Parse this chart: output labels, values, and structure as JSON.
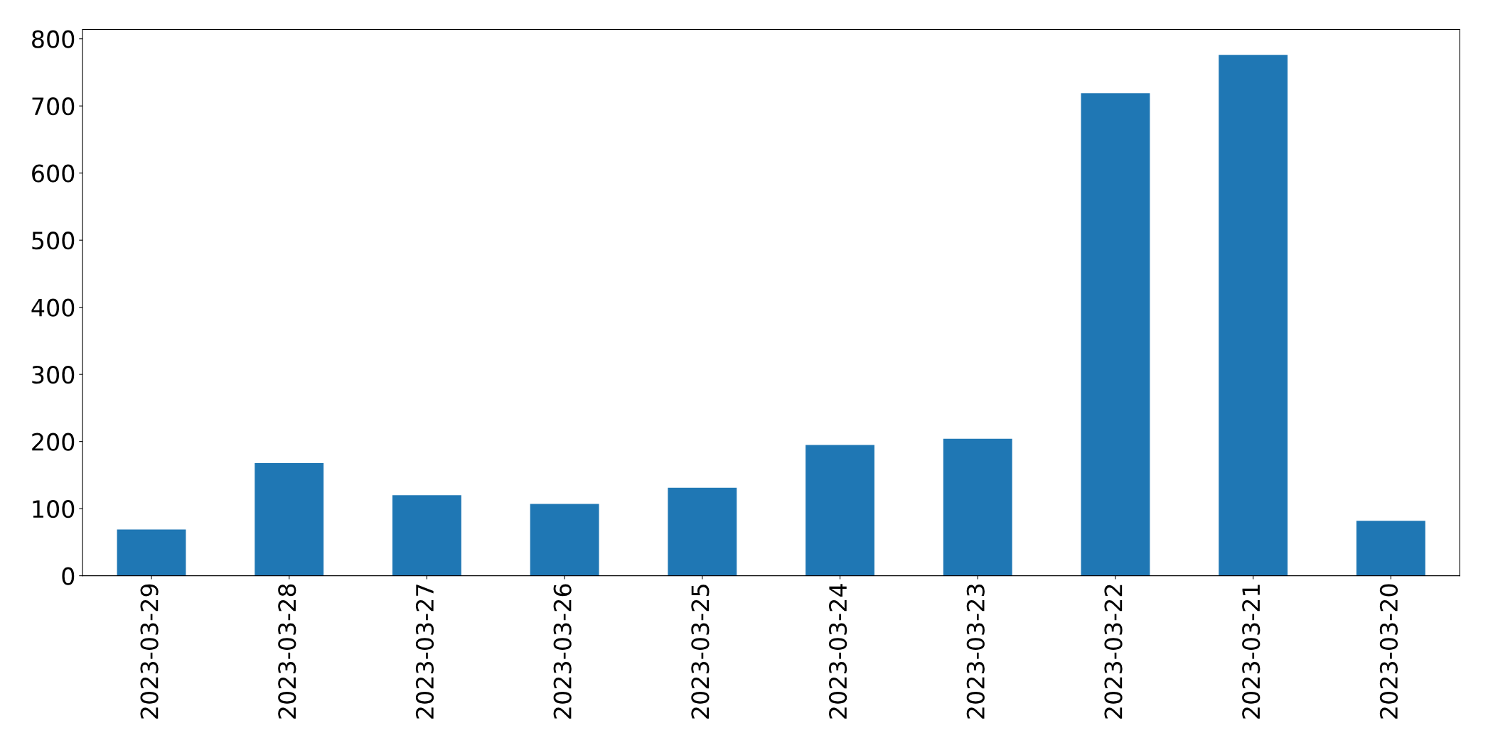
{
  "chart_data": {
    "type": "bar",
    "categories": [
      "2023-03-29",
      "2023-03-28",
      "2023-03-27",
      "2023-03-26",
      "2023-03-25",
      "2023-03-24",
      "2023-03-23",
      "2023-03-22",
      "2023-03-21",
      "2023-03-20"
    ],
    "values": [
      69,
      168,
      120,
      107,
      131,
      195,
      204,
      719,
      776,
      82
    ],
    "color": "#1f77b4",
    "ylim": [
      0,
      814
    ],
    "yticks": [
      0,
      100,
      200,
      300,
      400,
      500,
      600,
      700,
      800
    ],
    "grid": false
  }
}
